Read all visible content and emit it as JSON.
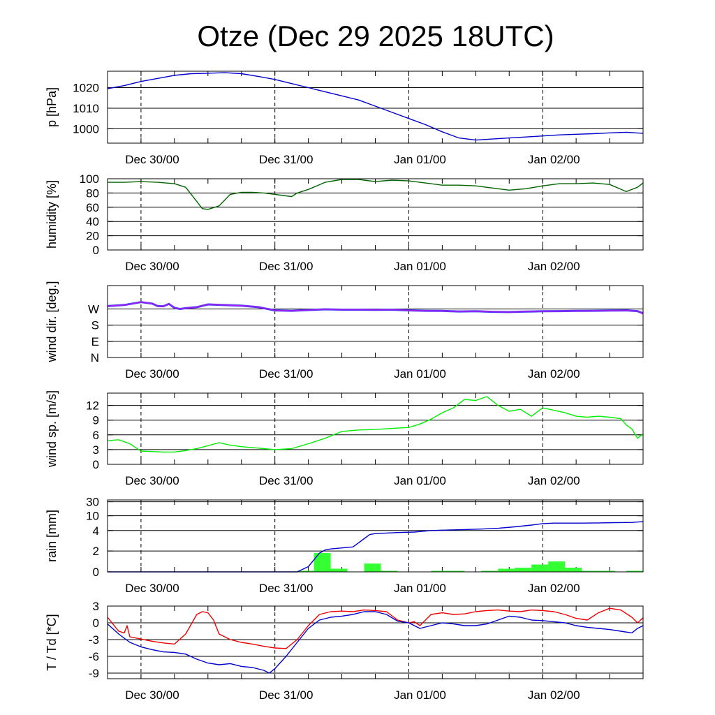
{
  "title": "Otze (Dec 29 2025 18UTC)",
  "x_ticks": [
    "Dec 30/00",
    "Dec 31/00",
    "Jan 01/00",
    "Jan 02/00"
  ],
  "colors": {
    "pressure": "#0000cc",
    "humidity": "#006400",
    "wind_dir": "#a020f0",
    "wind_dir_shadow": "#4040ff",
    "wind_speed": "#00ee00",
    "rain_bar": "#33ff33",
    "rain_line": "#0000cc",
    "temperature": "#ee0000",
    "dewpoint": "#0000cc"
  },
  "chart_data": [
    {
      "type": "line",
      "ylabel": "p [hPa]",
      "x_unit": "hours since Dec 29 18UTC",
      "xlim": [
        0,
        96
      ],
      "ylim": [
        993,
        1028
      ],
      "y_ticks": [
        1000,
        1010,
        1020
      ],
      "y_tick_labels": [
        "1000",
        "1010",
        "1020"
      ],
      "series": [
        {
          "name": "pressure",
          "x": [
            0,
            3,
            6,
            9,
            12,
            15,
            18,
            21,
            24,
            27,
            30,
            33,
            36,
            39,
            42,
            45,
            48,
            51,
            54,
            57,
            60,
            63,
            66,
            69,
            72,
            75,
            78,
            81,
            84,
            87,
            90,
            93,
            96
          ],
          "values": [
            1019.5,
            1021,
            1023,
            1024.5,
            1026,
            1026.8,
            1027,
            1027.3,
            1026.8,
            1025.5,
            1024,
            1022,
            1020,
            1018,
            1016,
            1014,
            1011,
            1008,
            1005,
            1002,
            998.5,
            995.5,
            994.5,
            995,
            995.5,
            996,
            996.5,
            997,
            997.3,
            997.6,
            998,
            998.3,
            997.8
          ]
        }
      ]
    },
    {
      "type": "line",
      "ylabel": "humidity [%]",
      "x_unit": "hours since Dec 29 18UTC",
      "xlim": [
        0,
        96
      ],
      "ylim": [
        0,
        100
      ],
      "y_ticks": [
        0,
        20,
        40,
        60,
        80,
        100
      ],
      "y_tick_labels": [
        "0",
        "20",
        "40",
        "60",
        "80",
        "100"
      ],
      "series": [
        {
          "name": "humidity",
          "x": [
            0,
            3,
            6,
            9,
            12,
            14,
            16,
            17,
            18,
            20,
            22,
            24,
            26,
            28,
            30,
            32,
            33,
            34,
            36,
            39,
            42,
            45,
            48,
            51,
            54,
            57,
            60,
            63,
            66,
            69,
            72,
            75,
            78,
            81,
            84,
            87,
            90,
            93,
            95,
            96
          ],
          "values": [
            95,
            95,
            96,
            95,
            93,
            88,
            68,
            58,
            57,
            62,
            78,
            81,
            81,
            80,
            78,
            76,
            75,
            80,
            85,
            95,
            99,
            99,
            96,
            98,
            97,
            94,
            91,
            91,
            90,
            87,
            84,
            86,
            90,
            93,
            93,
            94,
            92,
            82,
            88,
            94
          ]
        }
      ]
    },
    {
      "type": "line",
      "ylabel": "wind dir. [deg.]",
      "x_unit": "hours since Dec 29 18UTC",
      "xlim": [
        0,
        96
      ],
      "ylim": [
        0,
        400
      ],
      "y_ticks": [
        0,
        90,
        180,
        270
      ],
      "y_tick_labels": [
        "N",
        "E",
        "S",
        "W"
      ],
      "series": [
        {
          "name": "wind direction",
          "x": [
            0,
            3,
            6,
            8,
            9,
            10,
            11,
            12,
            13,
            14,
            16,
            18,
            20,
            24,
            27,
            30,
            33,
            36,
            39,
            42,
            45,
            48,
            51,
            54,
            57,
            60,
            63,
            66,
            69,
            72,
            75,
            78,
            81,
            84,
            87,
            90,
            93,
            95,
            96
          ],
          "values": [
            286,
            292,
            308,
            300,
            286,
            285,
            298,
            276,
            270,
            274,
            280,
            295,
            293,
            288,
            280,
            262,
            260,
            264,
            268,
            266,
            266,
            265,
            266,
            262,
            260,
            259,
            256,
            257,
            254,
            253,
            255,
            257,
            258,
            259,
            260,
            261,
            262,
            258,
            246
          ]
        }
      ]
    },
    {
      "type": "line",
      "ylabel": "wind sp. [m/s]",
      "x_unit": "hours since Dec 29 18UTC",
      "xlim": [
        0,
        96
      ],
      "ylim": [
        0,
        14.5
      ],
      "y_ticks": [
        0,
        3,
        6,
        9,
        12
      ],
      "y_tick_labels": [
        "0",
        "3",
        "6",
        "9",
        "12"
      ],
      "series": [
        {
          "name": "wind speed",
          "x": [
            0,
            2,
            4,
            6,
            8,
            10,
            12,
            14,
            16,
            18,
            20,
            22,
            24,
            26,
            28,
            30,
            33,
            36,
            39,
            42,
            45,
            48,
            51,
            54,
            56,
            58,
            60,
            62,
            64,
            66,
            68,
            70,
            72,
            74,
            76,
            78,
            80,
            82,
            84,
            86,
            88,
            90,
            92,
            93,
            94,
            95,
            96
          ],
          "values": [
            4.8,
            5.0,
            4.2,
            2.7,
            2.6,
            2.5,
            2.5,
            2.8,
            3.2,
            3.8,
            4.4,
            3.9,
            3.6,
            3.4,
            3.2,
            3.0,
            3.2,
            4.2,
            5.3,
            6.7,
            7.0,
            7.1,
            7.3,
            7.5,
            8.2,
            9.2,
            10.5,
            11.5,
            13.2,
            13.0,
            13.8,
            12.0,
            10.8,
            11.2,
            9.8,
            11.5,
            11.0,
            10.5,
            9.8,
            9.6,
            9.8,
            9.6,
            9.3,
            8.0,
            7.2,
            5.3,
            6.2
          ]
        }
      ]
    },
    {
      "type": "bar+line",
      "ylabel": "rain [mm]",
      "x_unit": "hours since Dec 29 18UTC",
      "xlim": [
        0,
        96
      ],
      "y_scale": "custom, ticks at 0, 2, 4, 10, 30",
      "y_ticks": [
        0,
        2,
        4,
        10,
        30
      ],
      "y_tick_labels": [
        "0",
        "2",
        "4",
        "10",
        "30"
      ],
      "bars": {
        "name": "hourly rain",
        "x_start": [
          34,
          37,
          40,
          46,
          49,
          58,
          61,
          67,
          70,
          73,
          76,
          79,
          82,
          85,
          88,
          93
        ],
        "x_end": [
          37,
          40,
          43,
          49,
          52,
          61,
          64,
          70,
          73,
          76,
          79,
          82,
          85,
          88,
          91,
          96
        ],
        "values": [
          0.1,
          1.8,
          0.3,
          0.8,
          0.1,
          0.1,
          0.1,
          0.1,
          0.3,
          0.4,
          0.7,
          1.0,
          0.4,
          0.1,
          0.1,
          0.1
        ]
      },
      "series": [
        {
          "name": "accumulated rain",
          "x": [
            0,
            30,
            34,
            36,
            38,
            39,
            40,
            42,
            44,
            45,
            46,
            47,
            48,
            50,
            52,
            55,
            58,
            61,
            64,
            67,
            70,
            73,
            76,
            78,
            80,
            82,
            85,
            88,
            91,
            94,
            96
          ],
          "values": [
            0,
            0,
            0,
            0.5,
            1.8,
            2.1,
            2.2,
            2.3,
            2.4,
            2.8,
            3.2,
            3.6,
            3.7,
            3.75,
            3.8,
            3.85,
            4.0,
            4.2,
            4.4,
            4.6,
            4.9,
            5.5,
            6.2,
            6.8,
            7.0,
            7.0,
            7.0,
            7.1,
            7.2,
            7.3,
            7.6
          ]
        }
      ]
    },
    {
      "type": "line",
      "ylabel": "T / Td [*C]",
      "x_unit": "hours since Dec 29 18UTC",
      "xlim": [
        0,
        96
      ],
      "ylim": [
        -10,
        3
      ],
      "y_ticks": [
        -9,
        -6,
        -3,
        0,
        3
      ],
      "y_tick_labels": [
        "-9",
        "-6",
        "-3",
        "0",
        "3"
      ],
      "series": [
        {
          "name": "T",
          "x": [
            0,
            2,
            3,
            3.5,
            4,
            6,
            8,
            10,
            12,
            14,
            16,
            17,
            18,
            19,
            20,
            22,
            24,
            26,
            28,
            30,
            32,
            34,
            36,
            38,
            40,
            42,
            44,
            46,
            48,
            50,
            52,
            54,
            55,
            56,
            58,
            60,
            62,
            64,
            66,
            68,
            70,
            72,
            74,
            76,
            78,
            80,
            82,
            84,
            86,
            88,
            90,
            92,
            94,
            95,
            96
          ],
          "values": [
            1.0,
            -1.5,
            -1.8,
            -0.5,
            -2.5,
            -2.9,
            -3.3,
            -3.6,
            -3.8,
            -2.0,
            1.5,
            2.0,
            1.8,
            0.5,
            -2.0,
            -3.0,
            -3.5,
            -3.8,
            -4.2,
            -4.5,
            -4.6,
            -3.0,
            -0.5,
            1.5,
            2.0,
            2.1,
            2.0,
            2.3,
            2.2,
            2.0,
            0.5,
            0.0,
            0.2,
            -0.5,
            1.5,
            1.8,
            1.5,
            1.6,
            2.0,
            2.2,
            2.3,
            2.1,
            2.0,
            2.3,
            2.2,
            2.0,
            1.5,
            0.8,
            0.5,
            1.8,
            2.6,
            2.3,
            1.0,
            0.0,
            0.9
          ]
        },
        {
          "name": "Td",
          "x": [
            0,
            2,
            4,
            6,
            8,
            10,
            12,
            14,
            16,
            18,
            20,
            22,
            24,
            26,
            28,
            29,
            30,
            32,
            34,
            36,
            38,
            40,
            42,
            44,
            46,
            48,
            50,
            52,
            54,
            56,
            58,
            60,
            62,
            64,
            66,
            68,
            70,
            72,
            74,
            76,
            78,
            80,
            82,
            84,
            86,
            88,
            90,
            92,
            94,
            95,
            96
          ],
          "values": [
            -0.2,
            -2.0,
            -3.5,
            -4.3,
            -4.8,
            -5.2,
            -5.3,
            -5.6,
            -6.5,
            -7.2,
            -7.5,
            -7.3,
            -7.8,
            -8.0,
            -8.5,
            -9.0,
            -8.2,
            -6.0,
            -3.5,
            -1.0,
            0.5,
            1.0,
            1.2,
            1.5,
            2.0,
            2.0,
            1.5,
            0.3,
            0.0,
            -1.0,
            -0.5,
            0.0,
            -0.2,
            -0.5,
            -0.5,
            -0.2,
            0.5,
            1.2,
            1.0,
            0.5,
            0.4,
            0.2,
            0.0,
            -0.5,
            -0.8,
            -1.0,
            -1.2,
            -1.5,
            -1.8,
            -1.0,
            -0.5
          ]
        }
      ]
    }
  ]
}
